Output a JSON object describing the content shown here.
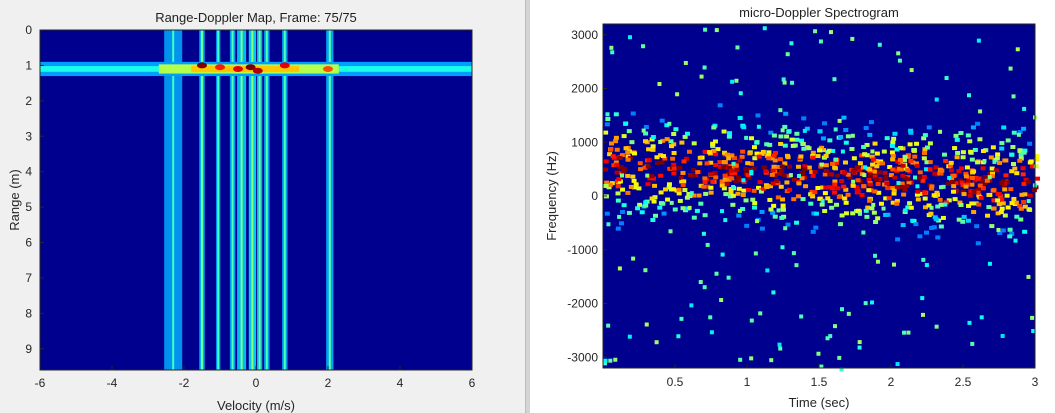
{
  "chart_data": [
    {
      "type": "heatmap",
      "title": "Range-Doppler Map, Frame: 75/75",
      "xlabel": "Velocity (m/s)",
      "ylabel": "Range (m)",
      "xlim": [
        -6,
        6
      ],
      "ylim": [
        9.6,
        0
      ],
      "x_ticks": [
        -6,
        -4,
        -2,
        0,
        2,
        4,
        6
      ],
      "y_ticks": [
        0,
        1,
        2,
        3,
        4,
        5,
        6,
        7,
        8,
        9
      ],
      "colormap": "jet",
      "background": "#00008f",
      "range_band": {
        "center": 1.1,
        "halfwidth": 0.2
      },
      "velocity_lines": [
        {
          "v": -2.3,
          "level": 0.45,
          "width": 0.5
        },
        {
          "v": -1.5,
          "level": 0.6,
          "width": 0.15
        },
        {
          "v": -1.05,
          "level": 0.45,
          "width": 0.12
        },
        {
          "v": -0.65,
          "level": 0.5,
          "width": 0.15
        },
        {
          "v": -0.4,
          "level": 0.65,
          "width": 0.25
        },
        {
          "v": -0.1,
          "level": 0.7,
          "width": 0.2
        },
        {
          "v": 0.1,
          "level": 0.6,
          "width": 0.15
        },
        {
          "v": 0.3,
          "level": 0.5,
          "width": 0.15
        },
        {
          "v": 0.8,
          "level": 0.5,
          "width": 0.15
        },
        {
          "v": 2.05,
          "level": 0.55,
          "width": 0.2
        }
      ],
      "peaks": [
        {
          "v": -1.5,
          "r": 1.0,
          "level": 1.0
        },
        {
          "v": -1.0,
          "r": 1.05,
          "level": 0.85
        },
        {
          "v": -0.5,
          "r": 1.1,
          "level": 0.9
        },
        {
          "v": -0.15,
          "r": 1.05,
          "level": 1.0
        },
        {
          "v": 0.05,
          "r": 1.15,
          "level": 0.95
        },
        {
          "v": 0.8,
          "r": 1.0,
          "level": 0.9
        },
        {
          "v": 2.0,
          "r": 1.1,
          "level": 0.8
        }
      ]
    },
    {
      "type": "heatmap",
      "title": "micro-Doppler Spectrogram",
      "xlabel": "Time (sec)",
      "ylabel": "Frequency (Hz)",
      "xlim": [
        0,
        3
      ],
      "ylim": [
        -3200,
        3200
      ],
      "x_ticks": [
        0.5,
        1,
        1.5,
        2,
        2.5,
        3
      ],
      "y_ticks": [
        3000,
        2000,
        1000,
        0,
        -1000,
        -2000,
        -3000
      ],
      "colormap": "jet",
      "background": "#00008f",
      "dominant_band_hz": [
        0,
        1200
      ]
    }
  ]
}
